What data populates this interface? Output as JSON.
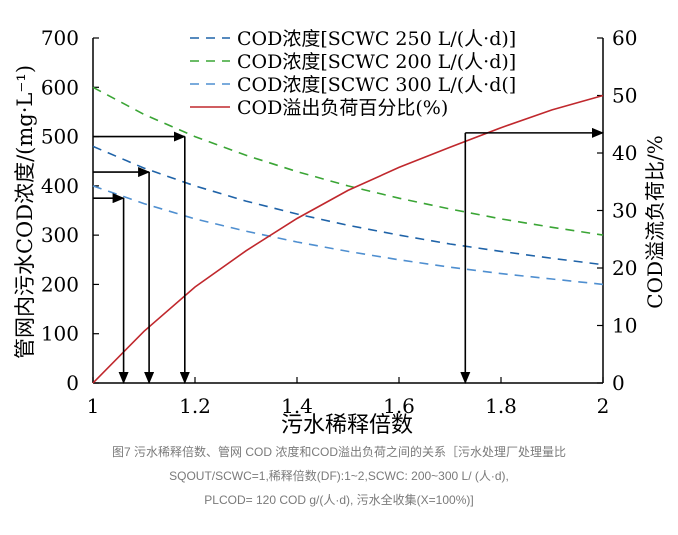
{
  "chart_data": {
    "type": "line",
    "xlabel": "污水稀释倍数",
    "ylabel": "管网内污水COD浓度/(mg·L⁻¹)",
    "y2label": "COD溢流负荷比/%",
    "xlim": [
      1,
      2
    ],
    "ylim": [
      0,
      700
    ],
    "y2lim": [
      0,
      60
    ],
    "x_ticks": [
      "1",
      "1.2",
      "1.4",
      "1.6",
      "1.8",
      "2"
    ],
    "y_ticks": [
      "0",
      "100",
      "200",
      "300",
      "400",
      "500",
      "600",
      "700"
    ],
    "y2_ticks": [
      "0",
      "10",
      "20",
      "30",
      "40",
      "50",
      "60"
    ],
    "grid": false,
    "legend_position": "top-center",
    "x": [
      1,
      1.1,
      1.2,
      1.3,
      1.4,
      1.5,
      1.6,
      1.7,
      1.8,
      1.9,
      2
    ],
    "series": [
      {
        "name": "COD浓度[SCWC 250 L/(人·d)]",
        "axis": "left",
        "style": "dashed",
        "color": "#1f63a8",
        "values": [
          480,
          436,
          400,
          369,
          343,
          320,
          300,
          282,
          267,
          253,
          240
        ]
      },
      {
        "name": "COD浓度[SCWC 200 L/(人·d)]",
        "axis": "left",
        "style": "dashed",
        "color": "#3aa535",
        "values": [
          600,
          545,
          500,
          462,
          429,
          400,
          375,
          353,
          333,
          316,
          300
        ]
      },
      {
        "name": "COD浓度[SCWC 300 L/(人·d(]",
        "axis": "left",
        "style": "dashed",
        "color": "#4f8fd0",
        "values": [
          400,
          364,
          333,
          308,
          286,
          267,
          250,
          235,
          222,
          211,
          200
        ]
      },
      {
        "name": "COD溢出负荷百分比(%)",
        "axis": "right",
        "style": "solid",
        "color": "#c0282d",
        "values": [
          0,
          9,
          16.7,
          23,
          28.6,
          33.5,
          37.5,
          41,
          44.4,
          47.5,
          50
        ]
      }
    ],
    "annotation_arrows": [
      {
        "from": {
          "x": 1,
          "y": 500
        },
        "to": {
          "x": 1.18,
          "y": 500
        },
        "drop_to": {
          "x": 1.18,
          "y": 0
        }
      },
      {
        "from": {
          "x": 1,
          "y": 428
        },
        "to": {
          "x": 1.11,
          "y": 428
        },
        "drop_to": {
          "x": 1.11,
          "y": 0
        }
      },
      {
        "from": {
          "x": 1,
          "y": 375
        },
        "to": {
          "x": 1.06,
          "y": 375
        },
        "drop_to": {
          "x": 1.06,
          "y": 0
        }
      },
      {
        "from": {
          "x": 1.73,
          "y2": 43.5
        },
        "to": {
          "x": 2,
          "y2": 43.5
        },
        "drop_to": {
          "x": 1.73,
          "y": 0
        }
      }
    ]
  },
  "caption": {
    "line1": "图7 污水稀释倍数、管网 COD 浓度和COD溢出负荷之间的关系［污水处理厂处理量比",
    "line2": "SQOUT/SCWC=1,稀释倍数(DF):1~2,SCWC: 200~300 L/ (人·d),",
    "line3": "PLCOD= 120 COD g/(人·d), 污水全收集(X=100%)]"
  },
  "colors": {
    "axis": "#000000",
    "arrow": "#000000",
    "caption_text": "#7a7a7a"
  }
}
